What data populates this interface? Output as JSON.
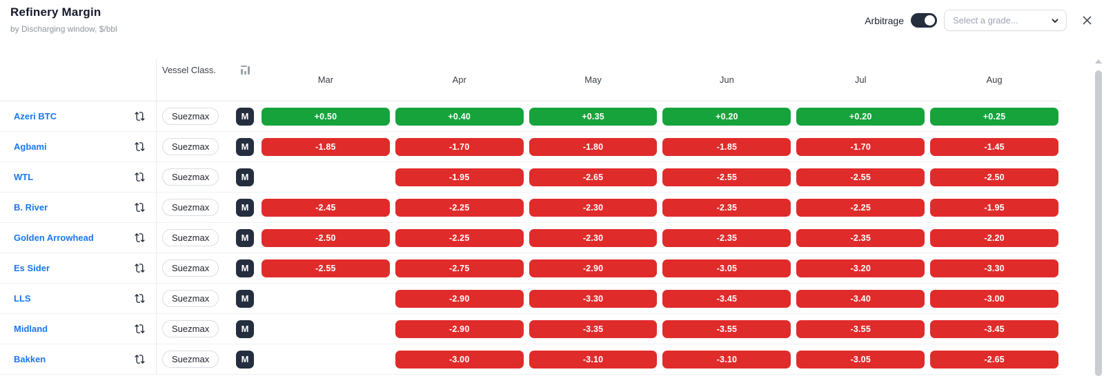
{
  "header": {
    "title": "Refinery Margin",
    "subtitle": "by Discharging window, $/bbl",
    "arbitrage_label": "Arbitrage",
    "arbitrage_on": true,
    "grade_placeholder": "Select a grade..."
  },
  "colors": {
    "positive_green": "#17a33c",
    "negative_red": "#e02b2b",
    "grade_link_blue": "#1877f2",
    "dark_badge_navy": "#242e3e"
  },
  "table": {
    "vessel_class_header": "Vessel Class.",
    "months": [
      "Mar",
      "Apr",
      "May",
      "Jun",
      "Jul",
      "Aug"
    ],
    "rows": [
      {
        "grade": "Azeri BTC",
        "vessel_class": "Suezmax",
        "badge": "M",
        "values": [
          "+0.50",
          "+0.40",
          "+0.35",
          "+0.20",
          "+0.20",
          "+0.25"
        ]
      },
      {
        "grade": "Agbami",
        "vessel_class": "Suezmax",
        "badge": "M",
        "values": [
          "-1.85",
          "-1.70",
          "-1.80",
          "-1.85",
          "-1.70",
          "-1.45"
        ]
      },
      {
        "grade": "WTL",
        "vessel_class": "Suezmax",
        "badge": "M",
        "values": [
          "",
          "-1.95",
          "-2.65",
          "-2.55",
          "-2.55",
          "-2.50"
        ]
      },
      {
        "grade": "B. River",
        "vessel_class": "Suezmax",
        "badge": "M",
        "values": [
          "-2.45",
          "-2.25",
          "-2.30",
          "-2.35",
          "-2.25",
          "-1.95"
        ]
      },
      {
        "grade": "Golden Arrowhead",
        "vessel_class": "Suezmax",
        "badge": "M",
        "values": [
          "-2.50",
          "-2.25",
          "-2.30",
          "-2.35",
          "-2.35",
          "-2.20"
        ]
      },
      {
        "grade": "Es Sider",
        "vessel_class": "Suezmax",
        "badge": "M",
        "values": [
          "-2.55",
          "-2.75",
          "-2.90",
          "-3.05",
          "-3.20",
          "-3.30"
        ]
      },
      {
        "grade": "LLS",
        "vessel_class": "Suezmax",
        "badge": "M",
        "values": [
          "",
          "-2.90",
          "-3.30",
          "-3.45",
          "-3.40",
          "-3.00"
        ]
      },
      {
        "grade": "Midland",
        "vessel_class": "Suezmax",
        "badge": "M",
        "values": [
          "",
          "-2.90",
          "-3.35",
          "-3.55",
          "-3.55",
          "-3.45"
        ]
      },
      {
        "grade": "Bakken",
        "vessel_class": "Suezmax",
        "badge": "M",
        "values": [
          "",
          "-3.00",
          "-3.10",
          "-3.10",
          "-3.05",
          "-2.65"
        ]
      }
    ]
  }
}
